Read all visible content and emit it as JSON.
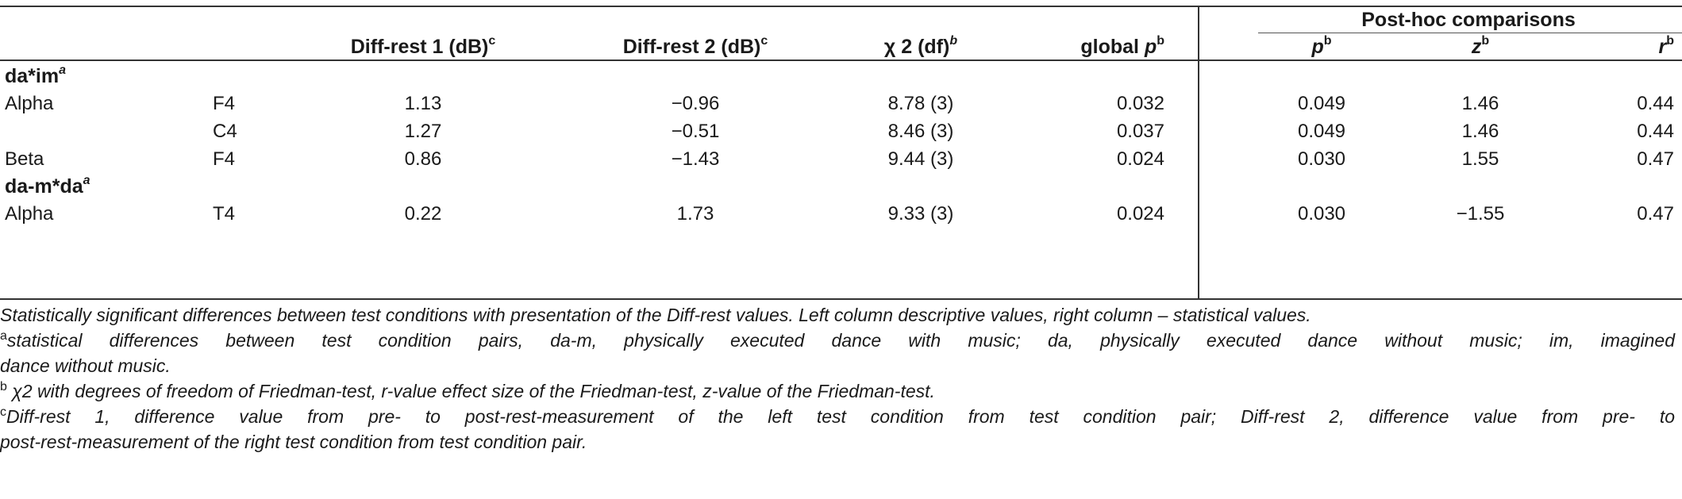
{
  "header": {
    "post_hoc": "Post-hoc comparisons",
    "cols": [
      {
        "label": "Diff-rest 1 (dB)",
        "sup": "c"
      },
      {
        "label": "Diff-rest 2 (dB)",
        "sup": "c"
      },
      {
        "label": "χ 2 (df)",
        "sup": "b"
      },
      {
        "label": "global p",
        "sup": "b"
      },
      {
        "label": "p",
        "sup": "b"
      },
      {
        "label": "z",
        "sup": "b"
      },
      {
        "label": "r",
        "sup": "b"
      }
    ]
  },
  "sections": [
    {
      "title": "da*im",
      "sup": "a",
      "rows": [
        {
          "band": "Alpha",
          "ch": "F4",
          "d1": "1.13",
          "d2": "−0.96",
          "chi": "8.78 (3)",
          "gp": "0.032",
          "p": "0.049",
          "z": "1.46",
          "r": "0.44"
        },
        {
          "band": "",
          "ch": "C4",
          "d1": "1.27",
          "d2": "−0.51",
          "chi": "8.46 (3)",
          "gp": "0.037",
          "p": "0.049",
          "z": "1.46",
          "r": "0.44"
        },
        {
          "band": "Beta",
          "ch": "F4",
          "d1": "0.86",
          "d2": "−1.43",
          "chi": "9.44 (3)",
          "gp": "0.024",
          "p": "0.030",
          "z": "1.55",
          "r": "0.47"
        }
      ]
    },
    {
      "title": "da-m*da",
      "sup": "a",
      "rows": [
        {
          "band": "Alpha",
          "ch": "T4",
          "d1": "0.22",
          "d2": "1.73",
          "chi": "9.33 (3)",
          "gp": "0.024",
          "p": "0.030",
          "z": "−1.55",
          "r": "0.47"
        }
      ]
    }
  ],
  "footnotes": {
    "main": "Statistically significant differences between test conditions with presentation of the Diff-rest values. Left column descriptive values, right column – statistical values.",
    "a_mark": "a",
    "a_line1": "statistical differences between test condition pairs, da-m, physically executed dance with music; da, physically executed dance without music; im, imagined",
    "a_line2": "dance without music.",
    "b_mark": "b",
    "b_text": " χ2 with degrees of freedom of Friedman-test, r-value effect size of the Friedman-test, z-value of the Friedman-test.",
    "c_mark": "c",
    "c_line1": "Diff-rest 1, difference value from pre- to post-rest-measurement of the left test condition from test condition pair; Diff-rest 2, difference value from pre- to",
    "c_line2": "post-rest-measurement of the right test condition from test condition pair."
  }
}
